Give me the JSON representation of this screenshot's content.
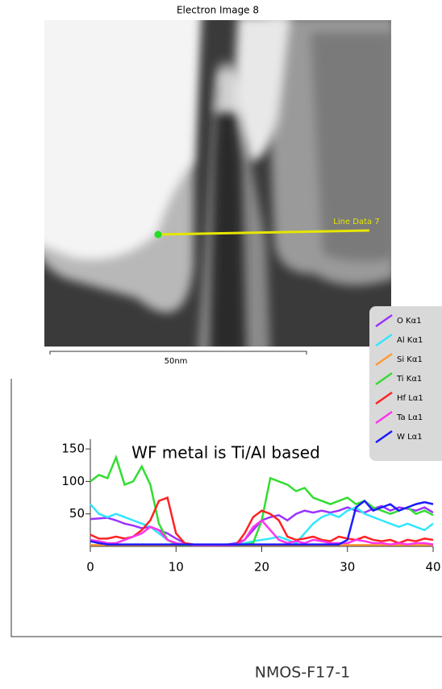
{
  "image": {
    "title": "Electron Image 8",
    "line_label": "Line Data 7",
    "scale_label": "50nm"
  },
  "caption": "NMOS-F17-1",
  "chart_data": {
    "type": "line",
    "title": "WF metal is Ti/Al based",
    "x": [
      0,
      1,
      2,
      3,
      4,
      5,
      6,
      7,
      8,
      9,
      10,
      11,
      12,
      13,
      14,
      15,
      16,
      17,
      18,
      19,
      20,
      21,
      22,
      23,
      24,
      25,
      26,
      27,
      28,
      29,
      30,
      31,
      32,
      33,
      34,
      35,
      36,
      37,
      38,
      39,
      40
    ],
    "xlim": [
      0,
      40
    ],
    "xticks": [
      0,
      10,
      20,
      30,
      40
    ],
    "ylim": [
      0,
      165
    ],
    "yticks": [
      50,
      100,
      150
    ],
    "series": [
      {
        "name": "O Kα1",
        "color": "#9933ff",
        "values": [
          42,
          43,
          44,
          40,
          35,
          32,
          28,
          30,
          25,
          20,
          12,
          5,
          3,
          2,
          2,
          2,
          3,
          5,
          10,
          25,
          40,
          45,
          48,
          40,
          50,
          55,
          52,
          55,
          52,
          55,
          60,
          55,
          52,
          58,
          62,
          55,
          60,
          58,
          55,
          60,
          52
        ]
      },
      {
        "name": "Al Kα1",
        "color": "#33e6ff",
        "values": [
          65,
          50,
          45,
          50,
          45,
          40,
          35,
          30,
          20,
          10,
          5,
          3,
          2,
          2,
          2,
          2,
          3,
          3,
          5,
          8,
          10,
          12,
          15,
          10,
          5,
          20,
          35,
          45,
          50,
          45,
          55,
          60,
          50,
          45,
          40,
          35,
          30,
          35,
          30,
          25,
          35
        ]
      },
      {
        "name": "Si Kα1",
        "color": "#ff9933",
        "values": [
          2,
          2,
          2,
          2,
          2,
          2,
          2,
          2,
          2,
          2,
          2,
          2,
          2,
          2,
          2,
          2,
          2,
          2,
          2,
          2,
          2,
          2,
          2,
          2,
          2,
          2,
          2,
          2,
          2,
          2,
          2,
          2,
          2,
          2,
          2,
          2,
          2,
          2,
          2,
          2,
          2
        ]
      },
      {
        "name": "Ti Kα1",
        "color": "#33dd33",
        "values": [
          100,
          110,
          105,
          137,
          95,
          100,
          123,
          95,
          35,
          10,
          3,
          2,
          2,
          2,
          2,
          2,
          2,
          2,
          3,
          5,
          40,
          105,
          100,
          95,
          85,
          90,
          75,
          70,
          65,
          70,
          75,
          65,
          70,
          60,
          55,
          50,
          55,
          60,
          50,
          55,
          48
        ]
      },
      {
        "name": "Hf Lα1",
        "color": "#ff2222",
        "values": [
          18,
          12,
          12,
          15,
          12,
          15,
          25,
          40,
          70,
          75,
          20,
          5,
          3,
          2,
          2,
          2,
          2,
          2,
          20,
          45,
          55,
          50,
          40,
          15,
          10,
          12,
          15,
          10,
          8,
          15,
          12,
          10,
          15,
          10,
          8,
          10,
          5,
          10,
          8,
          12,
          10
        ]
      },
      {
        "name": "Ta Lα1",
        "color": "#ff33ee",
        "values": [
          10,
          8,
          5,
          5,
          10,
          15,
          20,
          30,
          25,
          10,
          5,
          3,
          2,
          2,
          2,
          2,
          2,
          2,
          10,
          30,
          40,
          25,
          10,
          5,
          8,
          5,
          10,
          8,
          5,
          5,
          5,
          10,
          8,
          5,
          5,
          3,
          5,
          3,
          5,
          5,
          3
        ]
      },
      {
        "name": "W Lα1",
        "color": "#1a1aff",
        "values": [
          8,
          5,
          3,
          3,
          3,
          3,
          3,
          3,
          3,
          3,
          3,
          3,
          3,
          3,
          3,
          3,
          3,
          3,
          3,
          3,
          3,
          3,
          3,
          3,
          3,
          3,
          3,
          3,
          3,
          3,
          10,
          60,
          70,
          55,
          60,
          65,
          55,
          60,
          65,
          68,
          65
        ]
      }
    ]
  }
}
